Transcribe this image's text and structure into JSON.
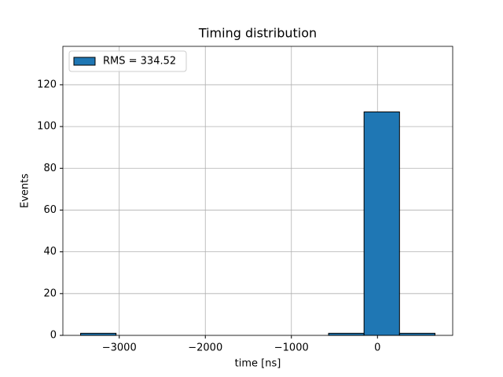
{
  "chart_data": {
    "type": "histogram",
    "title": "Timing distribution",
    "x_label": "time [ns]",
    "y_label": "Events",
    "bins": [
      -3449,
      -3037,
      -2626,
      -2214,
      -1803,
      -1391,
      -979,
      -568,
      -156,
      256,
      668
    ],
    "series": [
      {
        "name": "RMS = 334.52",
        "color": "#1f77b4",
        "values": [
          1,
          0,
          0,
          0,
          0,
          0,
          0,
          1,
          107,
          1
        ]
      }
    ],
    "xlim": [
      -3655,
      874
    ],
    "ylim": [
      0,
      138.4
    ],
    "xticks": [
      {
        "value": -3000,
        "label": "−3000"
      },
      {
        "value": -2000,
        "label": "−2000"
      },
      {
        "value": -1000,
        "label": "−1000"
      },
      0
    ],
    "yticks": [
      0,
      20,
      40,
      60,
      80,
      100,
      120
    ],
    "grid": true,
    "legend": "upper left"
  }
}
